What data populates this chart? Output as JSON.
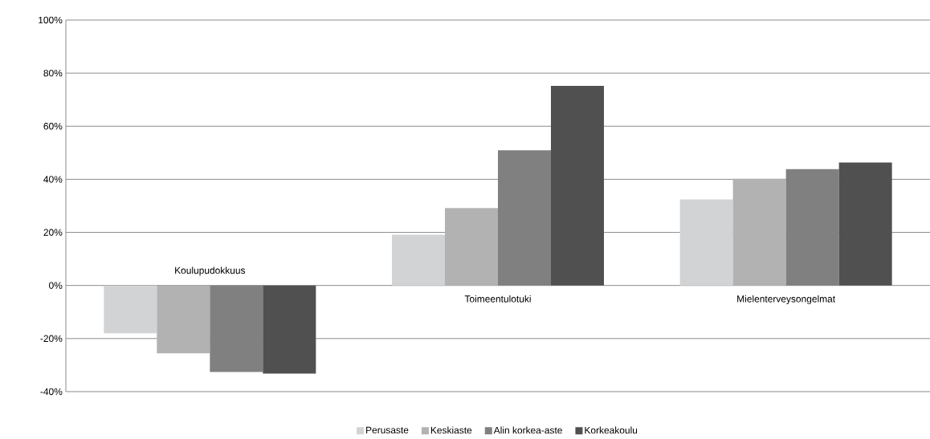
{
  "chart_data": {
    "type": "bar",
    "categories": [
      "Koulupudokkuus",
      "Toimeentulotuki",
      "Mielenterveysongelmat"
    ],
    "series": [
      {
        "name": "Perusaste",
        "color": "#d2d3d5",
        "values": [
          -18.0,
          19.1,
          32.4
        ]
      },
      {
        "name": "Keskiaste",
        "color": "#b2b2b2",
        "values": [
          -25.6,
          29.2,
          40.2
        ]
      },
      {
        "name": "Alin korkea-aste",
        "color": "#808080",
        "values": [
          -32.6,
          50.9,
          43.8
        ]
      },
      {
        "name": "Korkeakoulu",
        "color": "#505050",
        "values": [
          -33.2,
          75.2,
          46.3
        ]
      }
    ],
    "ylim": [
      -40,
      100
    ],
    "yticks": [
      {
        "value": -40,
        "label": "-40%"
      },
      {
        "value": -20,
        "label": "-20%"
      },
      {
        "value": 0,
        "label": "0%"
      },
      {
        "value": 20,
        "label": "20%"
      },
      {
        "value": 40,
        "label": "40%"
      },
      {
        "value": 60,
        "label": "60%"
      },
      {
        "value": 80,
        "label": "80%"
      },
      {
        "value": 100,
        "label": "100%"
      }
    ],
    "grid": "y",
    "legend": "bottom"
  }
}
